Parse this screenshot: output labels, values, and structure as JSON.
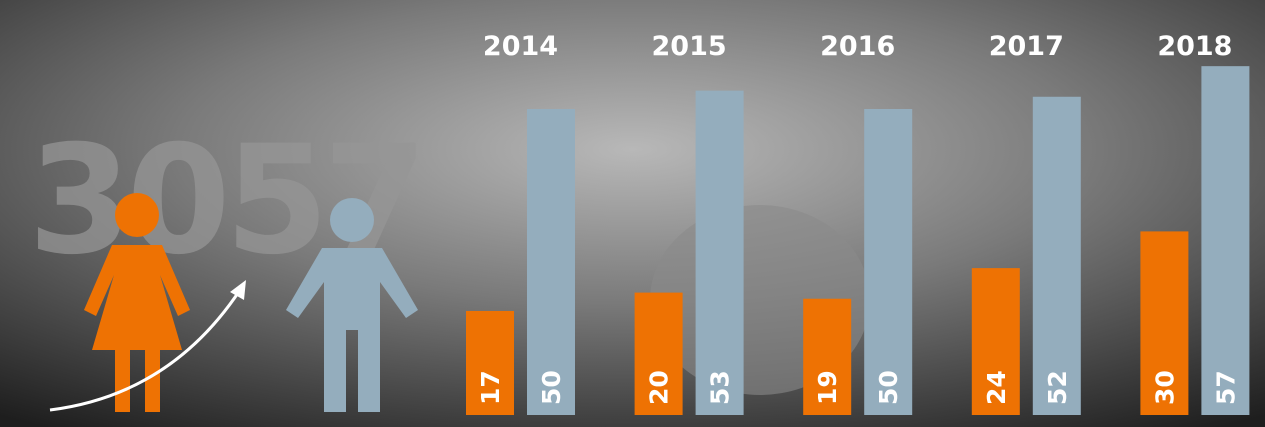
{
  "chart_data": {
    "type": "bar",
    "big_number": "3057",
    "categories": [
      "2014",
      "2015",
      "2016",
      "2017",
      "2018"
    ],
    "series": [
      {
        "color": "#ee7203",
        "values": [
          17,
          20,
          19,
          24,
          30
        ]
      },
      {
        "color": "#94adbd",
        "values": [
          50,
          53,
          50,
          52,
          57
        ]
      }
    ]
  }
}
